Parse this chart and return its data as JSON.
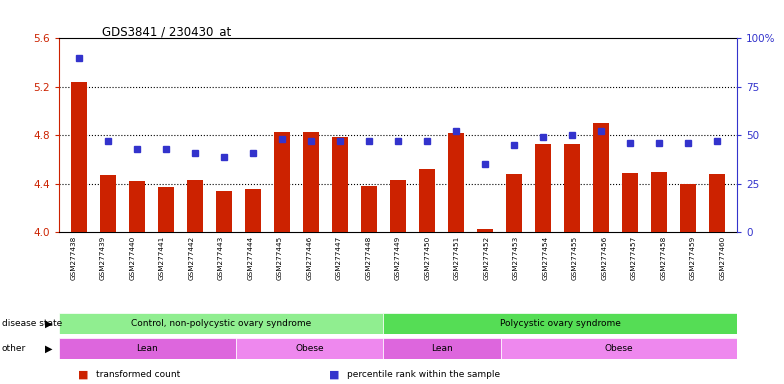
{
  "title": "GDS3841 / 230430_at",
  "samples": [
    "GSM277438",
    "GSM277439",
    "GSM277440",
    "GSM277441",
    "GSM277442",
    "GSM277443",
    "GSM277444",
    "GSM277445",
    "GSM277446",
    "GSM277447",
    "GSM277448",
    "GSM277449",
    "GSM277450",
    "GSM277451",
    "GSM277452",
    "GSM277453",
    "GSM277454",
    "GSM277455",
    "GSM277456",
    "GSM277457",
    "GSM277458",
    "GSM277459",
    "GSM277460"
  ],
  "bar_values": [
    5.24,
    4.47,
    4.42,
    4.37,
    4.43,
    4.34,
    4.36,
    4.83,
    4.83,
    4.79,
    4.38,
    4.43,
    4.52,
    4.82,
    4.03,
    4.48,
    4.73,
    4.73,
    4.9,
    4.49,
    4.5,
    4.4,
    4.48
  ],
  "percentile_values": [
    90,
    47,
    43,
    43,
    41,
    39,
    41,
    48,
    47,
    47,
    47,
    47,
    47,
    52,
    35,
    45,
    49,
    50,
    52,
    46,
    46,
    46,
    47
  ],
  "ylim_left": [
    4.0,
    5.6
  ],
  "ylim_right": [
    0,
    100
  ],
  "yticks_left": [
    4.0,
    4.4,
    4.8,
    5.2,
    5.6
  ],
  "yticks_right": [
    0,
    25,
    50,
    75,
    100
  ],
  "bar_color": "#CC2200",
  "dot_color": "#3333CC",
  "background_color": "#FFFFFF",
  "plot_bg_color": "#FFFFFF",
  "xticklabel_bg": "#D0D0D0",
  "disease_state_groups": [
    {
      "label": "Control, non-polycystic ovary syndrome",
      "start": 0,
      "end": 10,
      "color": "#90EE90"
    },
    {
      "label": "Polycystic ovary syndrome",
      "start": 11,
      "end": 22,
      "color": "#55DD55"
    }
  ],
  "other_groups": [
    {
      "label": "Lean",
      "start": 0,
      "end": 5,
      "color": "#DD66DD"
    },
    {
      "label": "Obese",
      "start": 6,
      "end": 10,
      "color": "#EE88EE"
    },
    {
      "label": "Lean",
      "start": 11,
      "end": 14,
      "color": "#DD66DD"
    },
    {
      "label": "Obese",
      "start": 15,
      "end": 22,
      "color": "#EE88EE"
    }
  ],
  "disease_label": "disease state",
  "other_label": "other",
  "legend_items": [
    {
      "label": "transformed count",
      "color": "#CC2200"
    },
    {
      "label": "percentile rank within the sample",
      "color": "#3333CC"
    }
  ]
}
